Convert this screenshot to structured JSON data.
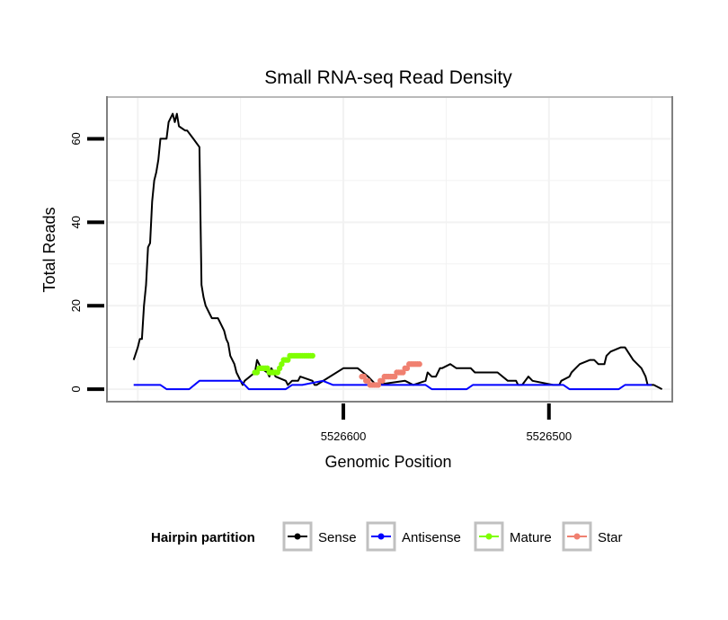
{
  "chart_data": {
    "type": "line",
    "title": "Small RNA-seq Read Density",
    "xlabel": "Genomic Position",
    "ylabel": "Total Reads",
    "xlim_comment": "x axis is reversed: larger genomic positions on the left",
    "xlim": [
      5526715,
      5526440
    ],
    "ylim": [
      -3,
      70
    ],
    "x_ticks": [
      5526600,
      5526500
    ],
    "x_tick_labels": [
      "5526600",
      "5526500"
    ],
    "y_ticks": [
      0,
      20,
      40,
      60
    ],
    "y_tick_labels": [
      "0",
      "20",
      "40",
      "60"
    ],
    "grid": true,
    "legend": {
      "title": "Hairpin partition",
      "position": "bottom",
      "entries": [
        "Sense",
        "Antisense",
        "Mature",
        "Star"
      ]
    },
    "series": [
      {
        "name": "Sense",
        "color": "#000000",
        "x": [
          5526702,
          5526700,
          5526699,
          5526698,
          5526697,
          5526696,
          5526695,
          5526694,
          5526693,
          5526692,
          5526691,
          5526690,
          5526689,
          5526686,
          5526685,
          5526684,
          5526683,
          5526682,
          5526681,
          5526680,
          5526677,
          5526676,
          5526673,
          5526670,
          5526669,
          5526668,
          5526667,
          5526665,
          5526664,
          5526661,
          5526658,
          5526657,
          5526656,
          5526655,
          5526653,
          5526652,
          5526650,
          5526649,
          5526648,
          5526643,
          5526642,
          5526640,
          5526637,
          5526636,
          5526635,
          5526634,
          5526633,
          5526628,
          5526627,
          5526625,
          5526622,
          5526621,
          5526615,
          5526614,
          5526613,
          5526600,
          5526593,
          5526588,
          5526584,
          5526570,
          5526566,
          5526560,
          5526559,
          5526557,
          5526555,
          5526553,
          5526552,
          5526548,
          5526545,
          5526538,
          5526536,
          5526525,
          5526520,
          5526516,
          5526515,
          5526513,
          5526510,
          5526508,
          5526498,
          5526495,
          5526494,
          5526490,
          5526489,
          5526487,
          5526485,
          5526480,
          5526478,
          5526476,
          5526473,
          5526472,
          5526470,
          5526465,
          5526464,
          5526463,
          5526459,
          5526457,
          5526455,
          5526453,
          5526452,
          5526449,
          5526445
        ],
        "y": [
          7,
          10,
          12,
          12,
          20,
          25,
          34,
          35,
          45,
          50,
          52,
          55,
          60,
          60,
          64,
          65,
          66,
          64,
          66,
          63,
          62,
          62,
          60,
          58,
          25,
          22,
          20,
          18,
          17,
          17,
          14,
          12,
          11,
          8,
          6,
          4,
          2,
          1,
          2,
          4,
          7,
          5,
          4,
          3,
          5,
          4,
          3,
          2,
          1,
          2,
          2,
          3,
          2,
          1,
          1,
          5,
          5,
          3,
          1,
          2,
          1,
          2,
          4,
          3,
          3,
          5,
          5,
          6,
          5,
          5,
          4,
          4,
          2,
          2,
          1,
          1,
          3,
          2,
          1,
          1,
          2,
          3,
          4,
          5,
          6,
          7,
          7,
          6,
          6,
          8,
          9,
          10,
          10,
          10,
          7,
          6,
          5,
          3,
          1,
          1,
          0
        ]
      },
      {
        "name": "Antisense",
        "color": "#0000FF",
        "x": [
          5526702,
          5526689,
          5526686,
          5526675,
          5526670,
          5526650,
          5526646,
          5526628,
          5526625,
          5526620,
          5526610,
          5526605,
          5526594,
          5526560,
          5526557,
          5526540,
          5526537,
          5526493,
          5526490,
          5526466,
          5526463,
          5526450
        ],
        "y": [
          1,
          1,
          0,
          0,
          2,
          2,
          0,
          0,
          1,
          1,
          2,
          1,
          1,
          1,
          0,
          0,
          1,
          1,
          0,
          0,
          1,
          1
        ]
      },
      {
        "name": "Mature",
        "color": "#7FFF00",
        "x": [
          5526643,
          5526642,
          5526641,
          5526640,
          5526639,
          5526638,
          5526637,
          5526636,
          5526635,
          5526634,
          5526633,
          5526632,
          5526631,
          5526630,
          5526629,
          5526628,
          5526627,
          5526626,
          5526625,
          5526624,
          5526623,
          5526622,
          5526621,
          5526620,
          5526619,
          5526618,
          5526617,
          5526616,
          5526615
        ],
        "y": [
          4,
          4,
          5,
          5,
          5,
          5,
          5,
          4,
          4,
          4,
          4,
          4,
          5,
          6,
          7,
          7,
          7,
          8,
          8,
          8,
          8,
          8,
          8,
          8,
          8,
          8,
          8,
          8,
          8
        ]
      },
      {
        "name": "Star",
        "color": "#F08070",
        "x": [
          5526591,
          5526590,
          5526589,
          5526588,
          5526587,
          5526586,
          5526585,
          5526584,
          5526583,
          5526582,
          5526581,
          5526580,
          5526579,
          5526578,
          5526577,
          5526576,
          5526575,
          5526574,
          5526573,
          5526572,
          5526571,
          5526570,
          5526569,
          5526568,
          5526567,
          5526566,
          5526565,
          5526564,
          5526563
        ],
        "y": [
          3,
          3,
          2,
          2,
          1,
          1,
          1,
          1,
          1,
          2,
          2,
          3,
          3,
          3,
          3,
          3,
          3,
          4,
          4,
          4,
          4,
          5,
          5,
          6,
          6,
          6,
          6,
          6,
          6
        ]
      }
    ]
  }
}
